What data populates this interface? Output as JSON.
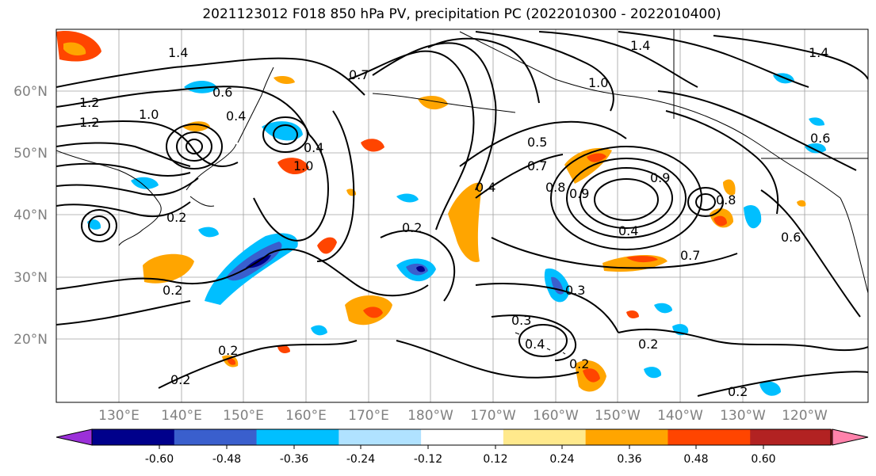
{
  "title": "2021123012 F018 850 hPa PV, precipitation PC (2022010300 - 2022010400)",
  "lat_labels": [
    "60°N",
    "50°N",
    "40°N",
    "30°N",
    "20°N"
  ],
  "lon_labels": [
    "130°E",
    "140°E",
    "150°E",
    "160°E",
    "170°E",
    "180°W",
    "170°W",
    "160°W",
    "150°W",
    "140°W",
    "130°W",
    "120°W"
  ],
  "colorbar": {
    "colors": [
      "#9b30d9",
      "#00008b",
      "#3a5fcd",
      "#00bfff",
      "#b0e2ff",
      "#ffffff",
      "#ffe98c",
      "#ffa500",
      "#ff4500",
      "#b22222",
      "#ff82ab"
    ],
    "tick_labels": [
      "-0.60",
      "-0.48",
      "-0.36",
      "-0.24",
      "-0.12",
      "0.12",
      "0.24",
      "0.36",
      "0.48",
      "0.60"
    ]
  },
  "contour_labels": [
    "1.4",
    "1.4",
    "1.4",
    "1.2",
    "1.2",
    "1.0",
    "1.0",
    "0.6",
    "0.4",
    "0.4",
    "0.7",
    "0.9",
    "0.5",
    "0.7",
    "0.8",
    "0.4",
    "1.0",
    "0.9",
    "0.4",
    "0.8",
    "0.6",
    "0.7",
    "0.2",
    "0.2",
    "0.2",
    "0.3",
    "0.3",
    "0.4",
    "0.2",
    "0.2",
    "0.2",
    "0.2",
    "0.2",
    "0.6"
  ]
}
